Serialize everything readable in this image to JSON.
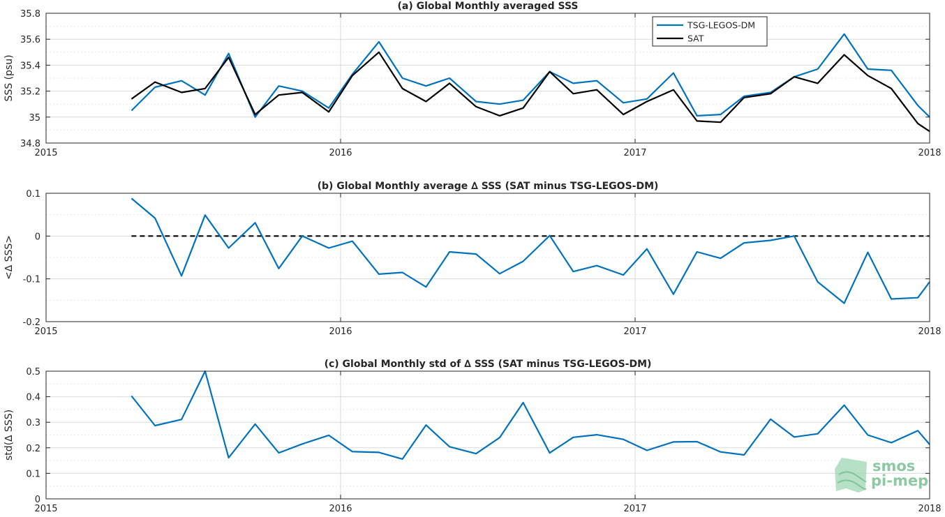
{
  "colors": {
    "tsg": "#0072BD",
    "sat": "#000000",
    "zero": "#000000",
    "watermark": "#8cc9a3"
  },
  "watermark": {
    "line1": "smos",
    "line2": "pi-mep"
  },
  "chart_data": [
    {
      "type": "line",
      "title": "(a) Global Monthly averaged SSS",
      "xlabel": "",
      "ylabel": "SSS (psu)",
      "xlim": [
        2015,
        2018
      ],
      "ylim": [
        34.8,
        35.8
      ],
      "xticks": [
        2015,
        2016,
        2017,
        2018
      ],
      "xtick_labels": [
        "2015",
        "2016",
        "2017",
        "2018"
      ],
      "yticks": [
        34.8,
        35,
        35.2,
        35.4,
        35.6,
        35.8
      ],
      "ytick_labels": [
        "34.8",
        "35",
        "35.2",
        "35.4",
        "35.6",
        "35.8"
      ],
      "grid": true,
      "legend": {
        "placement": "top-right",
        "entries": [
          "TSG-LEGOS-DM",
          "SAT"
        ]
      },
      "x": [
        2015.29,
        2015.37,
        2015.46,
        2015.54,
        2015.62,
        2015.71,
        2015.79,
        2015.87,
        2015.96,
        2016.04,
        2016.13,
        2016.21,
        2016.29,
        2016.37,
        2016.46,
        2016.54,
        2016.62,
        2016.71,
        2016.79,
        2016.87,
        2016.96,
        2017.04,
        2017.13,
        2017.21,
        2017.29,
        2017.37,
        2017.46,
        2017.54,
        2017.62,
        2017.71,
        2017.79,
        2017.87,
        2017.96,
        2018.0
      ],
      "series": [
        {
          "name": "TSG-LEGOS-DM",
          "color": "#0072BD",
          "values": [
            35.05,
            35.23,
            35.28,
            35.17,
            35.49,
            35.0,
            35.24,
            35.2,
            35.07,
            35.33,
            35.58,
            35.3,
            35.24,
            35.3,
            35.12,
            35.1,
            35.13,
            35.35,
            35.26,
            35.28,
            35.11,
            35.14,
            35.34,
            35.01,
            35.02,
            35.16,
            35.19,
            35.31,
            35.37,
            35.64,
            35.37,
            35.36,
            35.09,
            35.0
          ]
        },
        {
          "name": "SAT",
          "color": "#000000",
          "values": [
            35.14,
            35.27,
            35.19,
            35.22,
            35.46,
            35.02,
            35.17,
            35.19,
            35.04,
            35.32,
            35.5,
            35.22,
            35.12,
            35.26,
            35.08,
            35.01,
            35.07,
            35.35,
            35.18,
            35.21,
            35.02,
            35.12,
            35.21,
            34.97,
            34.96,
            35.15,
            35.18,
            35.31,
            35.26,
            35.48,
            35.32,
            35.22,
            34.95,
            34.89
          ]
        }
      ]
    },
    {
      "type": "line",
      "title": "(b) Global Monthly average ∆ SSS (SAT minus TSG-LEGOS-DM)",
      "xlabel": "",
      "ylabel": "<∆ SSS>",
      "xlim": [
        2015,
        2018
      ],
      "ylim": [
        -0.2,
        0.1
      ],
      "xticks": [
        2015,
        2016,
        2017,
        2018
      ],
      "xtick_labels": [
        "2015",
        "2016",
        "2017",
        "2018"
      ],
      "yticks": [
        -0.2,
        -0.1,
        0,
        0.1
      ],
      "ytick_labels": [
        "-0.2",
        "-0.1",
        "0",
        "0.1"
      ],
      "grid": true,
      "zero_line": {
        "x_range": [
          2015.29,
          2018.0
        ],
        "y": 0,
        "style": "dashed"
      },
      "x": [
        2015.29,
        2015.37,
        2015.46,
        2015.54,
        2015.62,
        2015.71,
        2015.79,
        2015.87,
        2015.96,
        2016.04,
        2016.13,
        2016.21,
        2016.29,
        2016.37,
        2016.46,
        2016.54,
        2016.62,
        2016.71,
        2016.79,
        2016.87,
        2016.96,
        2017.04,
        2017.13,
        2017.21,
        2017.29,
        2017.37,
        2017.46,
        2017.54,
        2017.62,
        2017.71,
        2017.79,
        2017.87,
        2017.96,
        2018.0
      ],
      "series": [
        {
          "name": "",
          "color": "#0072BD",
          "values": [
            0.088,
            0.042,
            -0.093,
            0.049,
            -0.028,
            0.031,
            -0.076,
            0.0,
            -0.028,
            -0.012,
            -0.089,
            -0.085,
            -0.119,
            -0.037,
            -0.042,
            -0.088,
            -0.059,
            0.001,
            -0.083,
            -0.069,
            -0.091,
            -0.03,
            -0.136,
            -0.037,
            -0.052,
            -0.016,
            -0.01,
            0.0,
            -0.107,
            -0.157,
            -0.038,
            -0.147,
            -0.144,
            -0.107
          ]
        }
      ]
    },
    {
      "type": "line",
      "title": "(c) Global Monthly std of ∆ SSS (SAT minus TSG-LEGOS-DM)",
      "xlabel": "",
      "ylabel": "std(∆ SSS)",
      "xlim": [
        2015,
        2018
      ],
      "ylim": [
        0,
        0.5
      ],
      "xticks": [
        2015,
        2016,
        2017,
        2018
      ],
      "xtick_labels": [
        "2015",
        "2016",
        "2017",
        "2018"
      ],
      "yticks": [
        0,
        0.1,
        0.2,
        0.3,
        0.4,
        0.5
      ],
      "ytick_labels": [
        "0",
        "0.1",
        "0.2",
        "0.3",
        "0.4",
        "0.5"
      ],
      "grid": true,
      "x": [
        2015.29,
        2015.37,
        2015.46,
        2015.54,
        2015.62,
        2015.71,
        2015.79,
        2015.87,
        2015.96,
        2016.04,
        2016.13,
        2016.21,
        2016.29,
        2016.37,
        2016.46,
        2016.54,
        2016.62,
        2016.71,
        2016.79,
        2016.87,
        2016.96,
        2017.04,
        2017.13,
        2017.21,
        2017.29,
        2017.37,
        2017.46,
        2017.54,
        2017.62,
        2017.71,
        2017.79,
        2017.87,
        2017.96,
        2018.0
      ],
      "series": [
        {
          "name": "",
          "color": "#0072BD",
          "values": [
            0.403,
            0.287,
            0.311,
            0.5,
            0.161,
            0.293,
            0.18,
            0.215,
            0.249,
            0.185,
            0.182,
            0.156,
            0.289,
            0.204,
            0.177,
            0.24,
            0.377,
            0.18,
            0.241,
            0.251,
            0.233,
            0.19,
            0.223,
            0.224,
            0.184,
            0.172,
            0.312,
            0.242,
            0.255,
            0.367,
            0.25,
            0.22,
            0.267,
            0.213
          ]
        }
      ]
    }
  ]
}
